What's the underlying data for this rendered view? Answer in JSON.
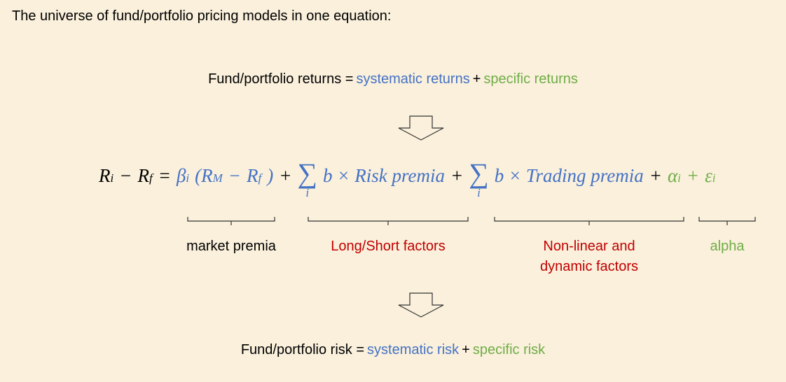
{
  "title": "The universe of fund/portfolio pricing models in one equation:",
  "returns_line": {
    "lhs": "Fund/portfolio returns =",
    "systematic": "systematic returns",
    "plus": "+",
    "specific": "specific returns"
  },
  "equation": {
    "tokens": [
      {
        "text": "R",
        "sub": "i",
        "color": "#000000"
      },
      {
        "text": "−",
        "color": "#000000"
      },
      {
        "text": "R",
        "sub": "f",
        "color": "#000000"
      },
      {
        "text": "=",
        "color": "#000000"
      },
      {
        "text": "β",
        "sub": "i",
        "color": "#4472c4"
      },
      {
        "text": "(R",
        "sub": "M",
        "color": "#4472c4"
      },
      {
        "text": "−",
        "color": "#4472c4"
      },
      {
        "text": "R",
        "sub": "f",
        "color": "#4472c4"
      },
      {
        "text": ")",
        "color": "#4472c4"
      },
      {
        "text": "+",
        "color": "#000000"
      },
      {
        "text": "∑",
        "under": "i",
        "color": "#4472c4"
      },
      {
        "text": "b × Risk premia",
        "color": "#4472c4"
      },
      {
        "text": "+",
        "color": "#000000"
      },
      {
        "text": "∑",
        "under": "i",
        "color": "#4472c4"
      },
      {
        "text": "b × Trading premia",
        "color": "#4472c4"
      },
      {
        "text": "+",
        "color": "#000000"
      },
      {
        "text": "α",
        "sub": "i",
        "color": "#70ad47"
      },
      {
        "text": "+",
        "color": "#70ad47"
      },
      {
        "text": "ε",
        "sub": "i",
        "color": "#70ad47"
      }
    ]
  },
  "labels": {
    "market": "market premia",
    "long_short": "Long/Short factors",
    "nonlinear": [
      "Non-linear and",
      "dynamic factors"
    ],
    "alpha": "alpha"
  },
  "risk_line": {
    "lhs": "Fund/portfolio risk =",
    "systematic": "systematic risk",
    "plus": "+",
    "specific": "specific risk"
  }
}
